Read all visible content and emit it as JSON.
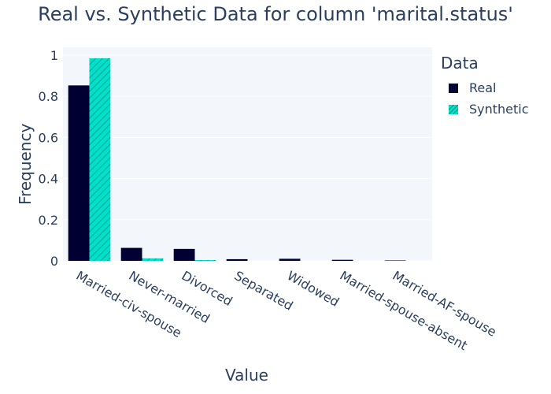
{
  "chart_data": {
    "type": "bar",
    "title": "Real vs. Synthetic Data for column 'marital.status'",
    "xlabel": "Value",
    "ylabel": "Frequency",
    "categories": [
      "Married-civ-spouse",
      "Never-married",
      "Divorced",
      "Separated",
      "Widowed",
      "Married-spouse-absent",
      "Married-AF-spouse"
    ],
    "series": [
      {
        "name": "Real",
        "color": "#000033",
        "pattern": "solid",
        "values": [
          0.853,
          0.063,
          0.058,
          0.008,
          0.01,
          0.005,
          0.002
        ]
      },
      {
        "name": "Synthetic",
        "color": "#01e0c9",
        "pattern": "diagonal-hatch",
        "values": [
          0.985,
          0.012,
          0.004,
          0.0,
          0.0,
          0.0,
          0.0
        ]
      }
    ],
    "ylim": [
      0,
      1.0
    ],
    "yticks": [
      0,
      0.2,
      0.4,
      0.6,
      0.8,
      1
    ],
    "ytick_labels": [
      "0",
      "0.2",
      "0.4",
      "0.6",
      "0.8",
      "1"
    ],
    "legend": {
      "title": "Data",
      "placement": "top-right"
    },
    "grid": true
  }
}
